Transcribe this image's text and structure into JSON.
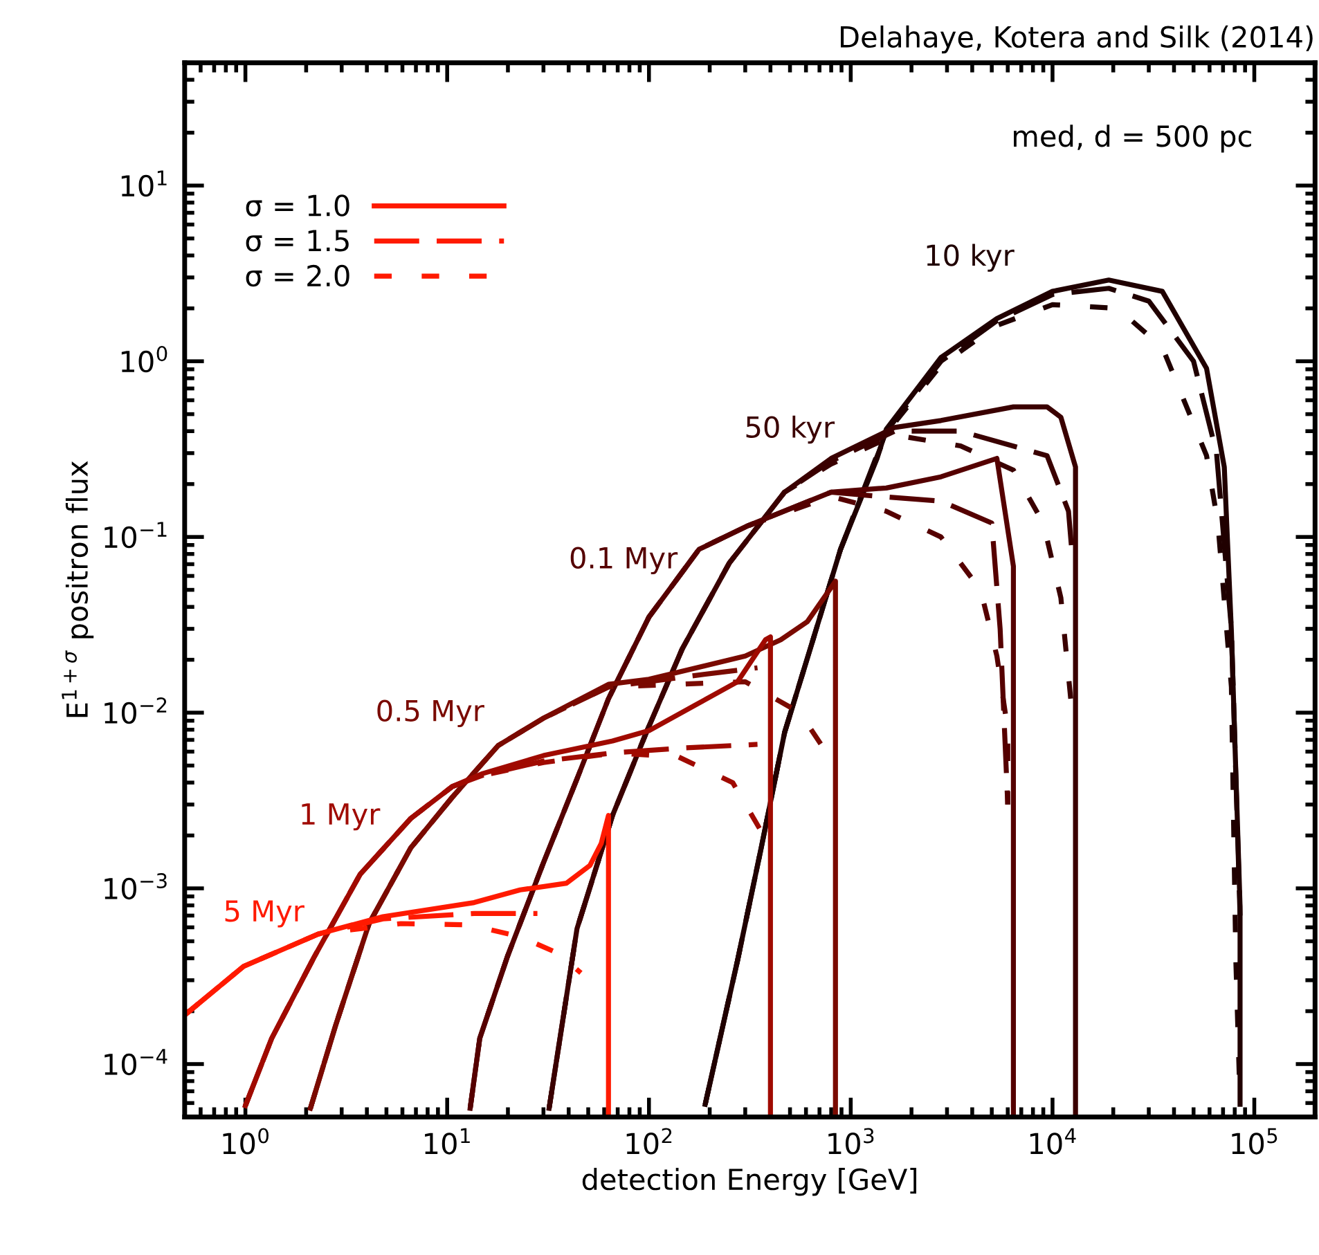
{
  "chart_data": {
    "type": "line",
    "title": "Delahaye, Kotera and Silk (2014)",
    "xlabel": "detection Energy [GeV]",
    "ylabel": "E$^{1+σ}$ positron flux",
    "log": "xy",
    "grid": false,
    "legend": "top left",
    "marker": "none",
    "xlim": [
      0.5,
      200000
    ],
    "ylim": [
      5e-05,
      50
    ],
    "xticks": [
      {
        "value": 1,
        "label": "10$^{0}$"
      },
      {
        "value": 10,
        "label": "10$^{1}$"
      },
      {
        "value": 100,
        "label": "10$^{2}$"
      },
      {
        "value": 1000,
        "label": "10$^{3}$"
      },
      {
        "value": 10000,
        "label": "10$^{4}$"
      },
      {
        "value": 100000,
        "label": "10$^{5}$"
      }
    ],
    "yticks": [
      {
        "value": 0.0001,
        "label": "10$^{−4}$"
      },
      {
        "value": 0.001,
        "label": "10$^{−3}$"
      },
      {
        "value": 0.01,
        "label": "10$^{−2}$"
      },
      {
        "value": 0.1,
        "label": "10$^{−1}$"
      },
      {
        "value": 1,
        "label": "10$^{0}$"
      },
      {
        "value": 10,
        "label": "10$^{1}$"
      }
    ],
    "annotations": [
      "10 kyr",
      "50 kyr",
      "0.1 Myr",
      "0.5 Myr",
      "1 Myr",
      "5 Myr",
      "med, d = 500 pc"
    ],
    "series": [
      {
        "color": "#200000",
        "line_style": "solid",
        "x": [
          190,
          275,
          360,
          470,
          650,
          890,
          1350,
          1500,
          2800,
          5300,
          10000,
          19000,
          35000,
          58000,
          71000,
          77000,
          85000,
          85000
        ],
        "values": [
          5.9e-05,
          0.00039,
          0.0017,
          0.0077,
          0.026,
          0.085,
          0.28,
          0.41,
          1.05,
          1.75,
          2.5,
          2.9,
          2.5,
          0.91,
          0.25,
          0.029,
          0.00079,
          5.9e-05
        ]
      },
      {
        "color": "#200000",
        "line_style": "dashed",
        "x": [
          190,
          275,
          360,
          470,
          650,
          890,
          1500,
          2800,
          5300,
          10000,
          19000,
          30000,
          50000,
          65000,
          77000,
          85000
        ],
        "values": [
          5.9e-05,
          0.00039,
          0.0017,
          0.0077,
          0.026,
          0.085,
          0.4,
          1.0,
          1.7,
          2.4,
          2.6,
          2.2,
          1.0,
          0.3,
          0.03,
          0.0007
        ]
      },
      {
        "color": "#200000",
        "line_style": "dotted",
        "x": [
          190,
          275,
          360,
          470,
          650,
          890,
          1500,
          2800,
          5300,
          10000,
          21000,
          35000,
          58000,
          66000,
          77000,
          81000,
          85000
        ],
        "values": [
          5.9e-05,
          0.00039,
          0.0017,
          0.0077,
          0.026,
          0.085,
          0.39,
          0.95,
          1.6,
          2.1,
          2.0,
          1.2,
          0.29,
          0.12,
          0.014,
          0.00039,
          6e-05
        ]
      },
      {
        "color": "#3a0000",
        "line_style": "solid",
        "x": [
          32,
          44,
          66,
          97,
          146,
          250,
          470,
          800,
          1650,
          2800,
          6400,
          9400,
          11000,
          13000,
          13000
        ],
        "values": [
          5.6e-05,
          0.00059,
          0.0026,
          0.0077,
          0.023,
          0.071,
          0.18,
          0.28,
          0.42,
          0.46,
          0.55,
          0.55,
          0.48,
          0.25,
          5e-05
        ]
      },
      {
        "color": "#3a0000",
        "line_style": "dashed",
        "x": [
          32,
          44,
          66,
          97,
          146,
          250,
          470,
          800,
          1650,
          3500,
          9400,
          12000,
          12500
        ],
        "values": [
          5.6e-05,
          0.00059,
          0.0026,
          0.0077,
          0.023,
          0.071,
          0.18,
          0.27,
          0.4,
          0.4,
          0.29,
          0.14,
          0.08
        ]
      },
      {
        "color": "#3a0000",
        "line_style": "dotted",
        "x": [
          32,
          44,
          66,
          97,
          146,
          250,
          470,
          800,
          1650,
          3500,
          6400,
          9000,
          11000,
          12500
        ],
        "values": [
          5.6e-05,
          0.00059,
          0.0026,
          0.0077,
          0.023,
          0.071,
          0.18,
          0.26,
          0.38,
          0.33,
          0.24,
          0.12,
          0.045,
          0.01
        ]
      },
      {
        "color": "#550000",
        "line_style": "solid",
        "x": [
          13,
          14.5,
          19.9,
          30,
          44,
          63,
          100,
          177,
          305,
          800,
          1500,
          2800,
          5300,
          6400,
          6400
        ],
        "values": [
          5.6e-05,
          0.00014,
          0.00041,
          0.0014,
          0.0042,
          0.012,
          0.035,
          0.085,
          0.115,
          0.18,
          0.19,
          0.22,
          0.28,
          0.068,
          5e-05
        ]
      },
      {
        "color": "#550000",
        "line_style": "dashed",
        "x": [
          13,
          14.5,
          19.9,
          30,
          44,
          63,
          100,
          177,
          305,
          800,
          1400,
          2800,
          5000,
          5500,
          6000
        ],
        "values": [
          5.6e-05,
          0.00014,
          0.00041,
          0.0014,
          0.0042,
          0.012,
          0.035,
          0.085,
          0.115,
          0.18,
          0.17,
          0.16,
          0.12,
          0.03,
          0.003
        ]
      },
      {
        "color": "#550000",
        "line_style": "dotted",
        "x": [
          13,
          14.5,
          19.9,
          30,
          44,
          63,
          100,
          177,
          305,
          800,
          1500,
          2800,
          4400,
          5300,
          6000,
          6000
        ],
        "values": [
          5.6e-05,
          0.00014,
          0.00041,
          0.0014,
          0.0042,
          0.012,
          0.035,
          0.085,
          0.115,
          0.17,
          0.14,
          0.1,
          0.05,
          0.021,
          0.008,
          0.003
        ]
      },
      {
        "color": "#7a0a00",
        "line_style": "solid",
        "x": [
          2.1,
          2.8,
          4.1,
          6.6,
          10.6,
          17.9,
          30,
          63,
          100,
          300,
          450,
          610,
          840,
          840
        ],
        "values": [
          5.6e-05,
          0.000166,
          0.00063,
          0.0017,
          0.0033,
          0.0065,
          0.0093,
          0.0145,
          0.0155,
          0.021,
          0.026,
          0.033,
          0.056,
          5e-05
        ]
      },
      {
        "color": "#7a0a00",
        "line_style": "dashed",
        "x": [
          2.1,
          2.8,
          4.1,
          6.6,
          10.6,
          17.9,
          30,
          63,
          150,
          345
        ],
        "values": [
          5.6e-05,
          0.000166,
          0.00063,
          0.0017,
          0.0033,
          0.0065,
          0.0093,
          0.014,
          0.016,
          0.018
        ]
      },
      {
        "color": "#7a0a00",
        "line_style": "dotted",
        "x": [
          2.1,
          2.8,
          4.1,
          6.6,
          10.6,
          17.9,
          30,
          63,
          140,
          300,
          560,
          800
        ],
        "values": [
          5.6e-05,
          0.000166,
          0.00063,
          0.0017,
          0.0033,
          0.0065,
          0.0093,
          0.014,
          0.0145,
          0.015,
          0.01,
          0.0054
        ]
      },
      {
        "color": "#a00a00",
        "line_style": "solid",
        "x": [
          1.0,
          1.35,
          2.2,
          3.7,
          6.6,
          10.6,
          15,
          30,
          66,
          100,
          275,
          378,
          400,
          400
        ],
        "values": [
          5.8e-05,
          0.00014,
          0.00041,
          0.0012,
          0.0025,
          0.0038,
          0.0045,
          0.0057,
          0.0069,
          0.0079,
          0.015,
          0.026,
          0.027,
          5e-05
        ]
      },
      {
        "color": "#a00a00",
        "line_style": "dashed",
        "x": [
          1.0,
          1.35,
          2.2,
          3.7,
          6.6,
          10.6,
          15,
          30,
          66,
          150,
          345
        ],
        "values": [
          5.8e-05,
          0.00014,
          0.00041,
          0.0012,
          0.0025,
          0.0038,
          0.0044,
          0.0053,
          0.0059,
          0.0063,
          0.0066
        ]
      },
      {
        "color": "#a00a00",
        "line_style": "dotted",
        "x": [
          1.0,
          1.35,
          2.2,
          3.7,
          6.6,
          10.6,
          15,
          30,
          68,
          140,
          260,
          380
        ],
        "values": [
          5.8e-05,
          0.00014,
          0.00041,
          0.0012,
          0.0025,
          0.0038,
          0.0044,
          0.0052,
          0.0059,
          0.0056,
          0.004,
          0.0019
        ]
      },
      {
        "name": "σ = 1.0",
        "color": "#ff1a00",
        "line_style": "solid",
        "x": [
          0.5,
          0.98,
          2.3,
          4.8,
          13.6,
          23,
          39,
          51,
          58,
          63,
          63
        ],
        "values": [
          0.00019,
          0.00036,
          0.00055,
          0.00069,
          0.00083,
          0.00098,
          0.00107,
          0.00135,
          0.0018,
          0.0026,
          5e-05
        ]
      },
      {
        "name": "σ = 1.5",
        "color": "#ff1a00",
        "line_style": "dashed",
        "x": [
          0.5,
          0.98,
          2.3,
          4.8,
          13.6,
          28
        ],
        "values": [
          0.00019,
          0.00036,
          0.00055,
          0.00067,
          0.00072,
          0.00072
        ]
      },
      {
        "name": "σ = 2.0",
        "color": "#ff1a00",
        "line_style": "dotted",
        "x": [
          0.5,
          0.98,
          2.3,
          5.9,
          13,
          23,
          35,
          46
        ],
        "values": [
          0.00019,
          0.00036,
          0.00055,
          0.00063,
          0.00062,
          0.00053,
          0.00043,
          0.00033
        ]
      }
    ]
  }
}
